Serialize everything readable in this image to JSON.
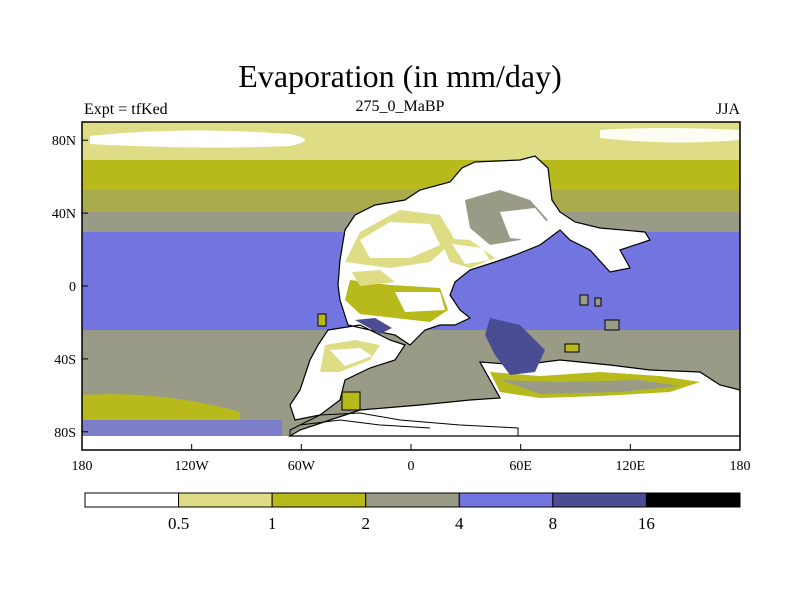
{
  "title": "Evaporation (in mm/day)",
  "left_label": "Expt = tfKed",
  "center_label": "275_0_MaBP",
  "right_label": "JJA",
  "map": {
    "lon_range": [
      -180,
      180
    ],
    "lat_range": [
      -90,
      90
    ],
    "x_ticks": [
      {
        "value": -180,
        "label": "180"
      },
      {
        "value": -120,
        "label": "120W"
      },
      {
        "value": -60,
        "label": "60W"
      },
      {
        "value": 0,
        "label": "0"
      },
      {
        "value": 60,
        "label": "60E"
      },
      {
        "value": 120,
        "label": "120E"
      },
      {
        "value": 180,
        "label": "180"
      }
    ],
    "y_ticks": [
      {
        "value": 80,
        "label": "80N"
      },
      {
        "value": 40,
        "label": "40N"
      },
      {
        "value": 0,
        "label": "0"
      },
      {
        "value": -40,
        "label": "40S"
      },
      {
        "value": -80,
        "label": "80S"
      }
    ]
  },
  "colorbar": {
    "colors": [
      "#ffffff",
      "#dedd86",
      "#b8b91b",
      "#9a9b87",
      "#7274e0",
      "#4b4d94",
      "#000000"
    ],
    "labels": [
      "0.5",
      "1",
      "2",
      "4",
      "8",
      "16"
    ]
  }
}
